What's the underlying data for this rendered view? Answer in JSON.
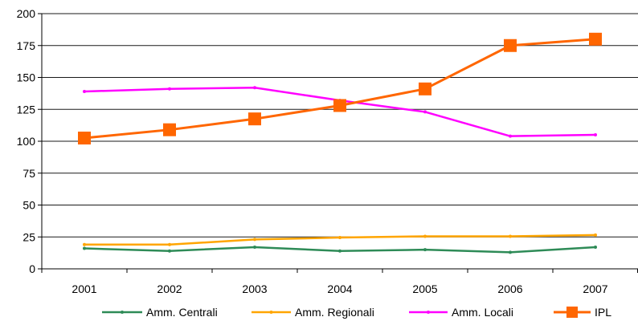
{
  "chart_data": {
    "type": "line",
    "title": "",
    "xlabel": "",
    "ylabel": "",
    "categories": [
      "2001",
      "2002",
      "2003",
      "2004",
      "2005",
      "2006",
      "2007"
    ],
    "ylim": [
      0,
      200
    ],
    "yticks": [
      0,
      25,
      50,
      75,
      100,
      125,
      150,
      175,
      200
    ],
    "ytick_labels": [
      "0",
      "25",
      "50",
      "75",
      "100",
      "125",
      "150",
      "175",
      "200"
    ],
    "grid": "horizontal",
    "legend_position": "bottom",
    "series": [
      {
        "name": "Amm. Centrali",
        "color": "#2e8b57",
        "marker": "small-dot",
        "values": [
          16,
          14,
          17,
          14,
          15,
          13,
          17
        ]
      },
      {
        "name": "Amm. Regionali",
        "color": "#ffa500",
        "marker": "small-dot",
        "values": [
          19,
          19,
          23,
          24.5,
          25.5,
          25.5,
          26.5
        ]
      },
      {
        "name": "Amm. Locali",
        "color": "#ff00ff",
        "marker": "small-dot",
        "values": [
          139,
          141,
          142,
          132,
          123,
          104,
          105
        ]
      },
      {
        "name": "IPL",
        "color": "#ff6600",
        "marker": "square",
        "values": [
          102.5,
          109,
          117.5,
          128,
          141,
          175,
          180
        ]
      }
    ]
  }
}
